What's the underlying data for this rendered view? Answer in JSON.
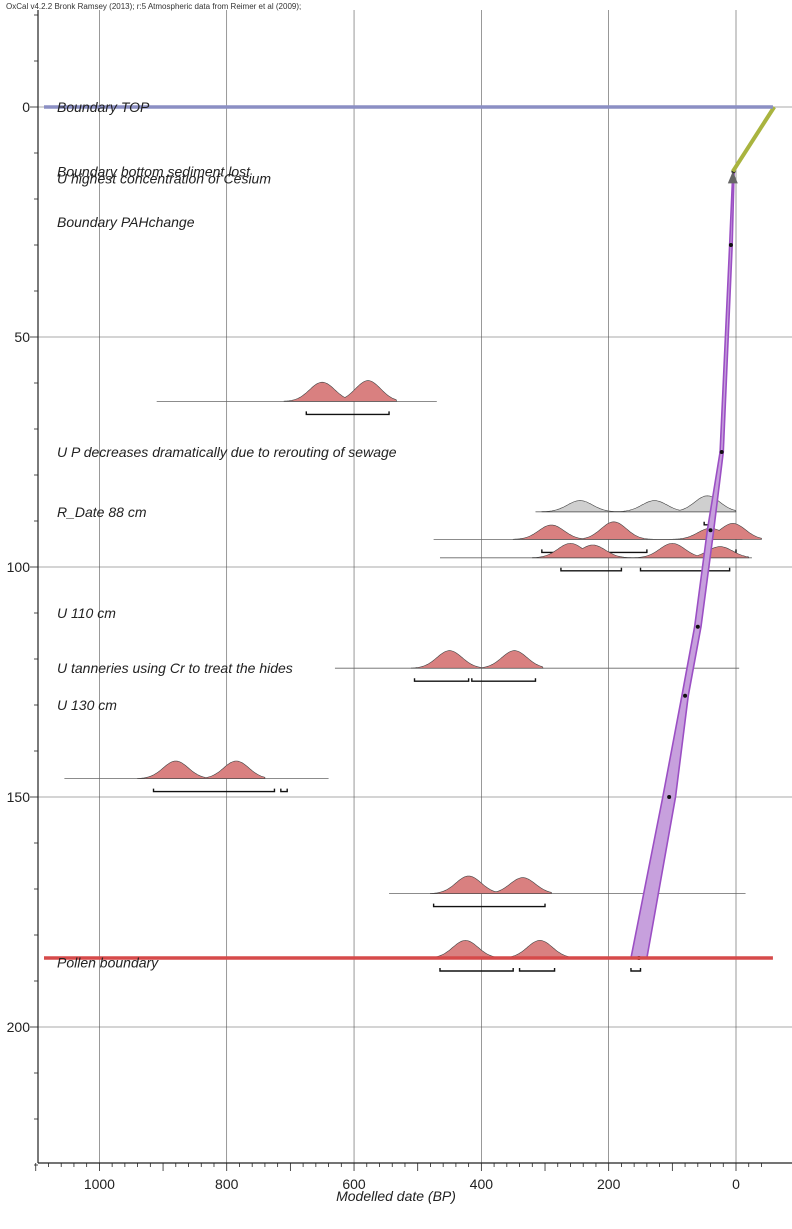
{
  "header": {
    "caption": "OxCal v4.2.2 Bronk Ramsey (2013); r:5 Atmospheric data from Reimer et al (2009);"
  },
  "chart_data": {
    "type": "age-depth model",
    "xlabel": "Modelled date (BP)",
    "ylabel": "",
    "xlim": [
      1100,
      -90
    ],
    "ylim": [
      0,
      230
    ],
    "x_reversed": true,
    "y_reversed": true,
    "x_ticks": [
      1000,
      800,
      600,
      400,
      200,
      0
    ],
    "y_ticks": [
      0,
      50,
      100,
      150,
      200
    ],
    "grid": true,
    "labels": [
      {
        "text": "Boundary TOP",
        "depth": 0
      },
      {
        "text": "Boundary bottom sediment lost",
        "depth": 14
      },
      {
        "text": "U highest concentration of Cesium",
        "depth": 15.5
      },
      {
        "text": "Boundary PAHchange",
        "depth": 25
      },
      {
        "text": "U P decreases dramatically due to rerouting of sewage",
        "depth": 75
      },
      {
        "text": "R_Date 88 cm",
        "depth": 88
      },
      {
        "text": "U 110 cm",
        "depth": 110
      },
      {
        "text": "U tanneries using Cr to treat the hides",
        "depth": 122
      },
      {
        "text": "U 130 cm",
        "depth": 130
      },
      {
        "text": "Pollen boundary",
        "depth": 186
      }
    ],
    "boundaries": [
      {
        "name": "Boundary TOP",
        "depth": 0,
        "color": "#8b8fc4"
      },
      {
        "name": "Pollen boundary",
        "depth": 185,
        "color": "#d64a4a"
      }
    ],
    "distributions": [
      {
        "depth": 64,
        "baseline": [
          910,
          470
        ],
        "color": "#d98080",
        "peaks": [
          [
            650,
            12
          ],
          [
            578,
            13
          ]
        ],
        "ranges": [
          [
            675,
            545
          ]
        ]
      },
      {
        "depth": 88,
        "baseline": [
          315,
          0
        ],
        "color": "#cfcfcf",
        "peaks": [
          [
            245,
            7
          ],
          [
            128,
            7
          ],
          [
            45,
            10
          ]
        ],
        "ranges": [
          [
            50,
            40
          ]
        ]
      },
      {
        "depth": 94,
        "baseline": [
          475,
          -10
        ],
        "color": "#d98080",
        "peaks": [
          [
            290,
            9
          ],
          [
            192,
            11
          ],
          [
            40,
            7
          ],
          [
            5,
            10
          ]
        ],
        "ranges": [
          [
            305,
            255
          ],
          [
            225,
            140
          ],
          [
            30,
            0
          ]
        ]
      },
      {
        "depth": 98,
        "baseline": [
          465,
          -25
        ],
        "color": "#d98080",
        "peaks": [
          [
            260,
            9
          ],
          [
            225,
            8
          ],
          [
            100,
            9
          ],
          [
            25,
            7
          ]
        ],
        "ranges": [
          [
            275,
            180
          ],
          [
            150,
            10
          ]
        ]
      },
      {
        "depth": 122,
        "baseline": [
          630,
          -5
        ],
        "color": "#d98080",
        "peaks": [
          [
            450,
            11
          ],
          [
            348,
            11
          ]
        ],
        "ranges": [
          [
            505,
            420
          ],
          [
            415,
            315
          ]
        ]
      },
      {
        "depth": 146,
        "baseline": [
          1055,
          640
        ],
        "color": "#d98080",
        "peaks": [
          [
            880,
            11
          ],
          [
            785,
            11
          ]
        ],
        "ranges": [
          [
            915,
            725
          ],
          [
            715,
            705
          ]
        ]
      },
      {
        "depth": 171,
        "baseline": [
          545,
          -15
        ],
        "color": "#d98080",
        "peaks": [
          [
            420,
            11
          ],
          [
            335,
            10
          ]
        ],
        "ranges": [
          [
            475,
            300
          ]
        ]
      },
      {
        "depth": 185,
        "baseline": [
          530,
          -15
        ],
        "color": "#d98080",
        "peaks": [
          [
            425,
            11
          ],
          [
            308,
            11
          ]
        ],
        "ranges": [
          [
            465,
            350
          ],
          [
            340,
            285
          ],
          [
            165,
            150
          ]
        ]
      }
    ],
    "model_envelope": {
      "color": "#9b4fc4",
      "left_edge": [
        [
          5,
          14
        ],
        [
          10,
          30
        ],
        [
          25,
          75
        ],
        [
          45,
          92
        ],
        [
          65,
          113
        ],
        [
          85,
          128
        ],
        [
          115,
          150
        ],
        [
          165,
          185
        ]
      ],
      "right_edge": [
        [
          3,
          14
        ],
        [
          6,
          30
        ],
        [
          20,
          75
        ],
        [
          35,
          92
        ],
        [
          55,
          113
        ],
        [
          75,
          128
        ],
        [
          95,
          150
        ],
        [
          140,
          185
        ]
      ]
    },
    "top_segment": {
      "color": "#a9b43f",
      "from": [
        -60,
        0
      ],
      "to": [
        5,
        14
      ]
    }
  }
}
